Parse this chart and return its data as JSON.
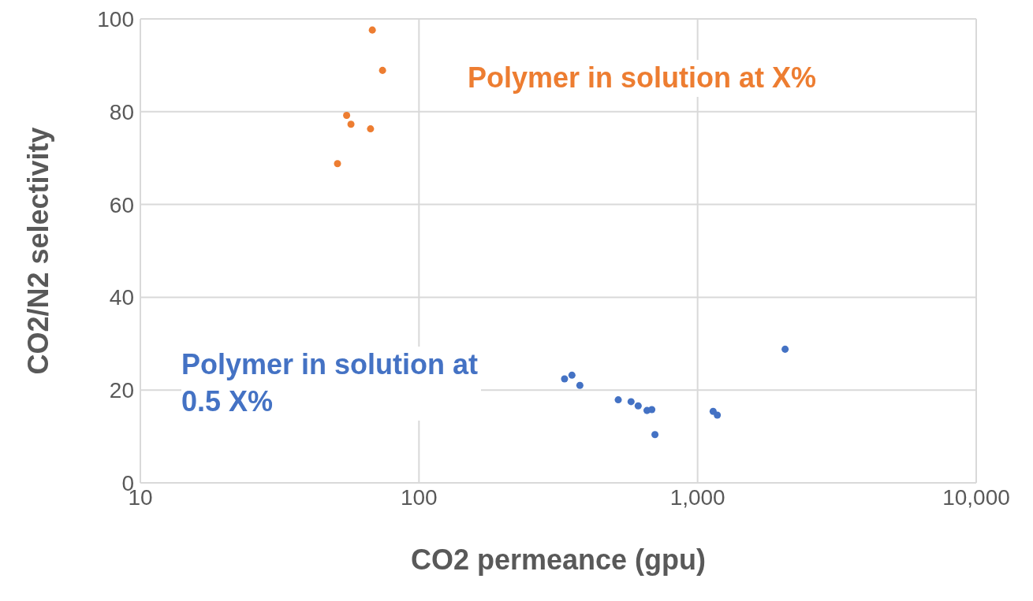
{
  "chart_data": {
    "type": "scatter",
    "xlabel": "CO2 permeance (gpu)",
    "ylabel": "CO2/N2 selectivity",
    "log": "x",
    "xlim": [
      10,
      10000
    ],
    "xticks": [
      10,
      100,
      {
        "value": 1000,
        "label": "1,000"
      },
      {
        "value": 10000,
        "label": "10,000"
      }
    ],
    "ylim": [
      0,
      100
    ],
    "yticks": [
      0,
      20,
      40,
      60,
      80,
      100
    ],
    "grid": true,
    "legend": false,
    "marker": "circle",
    "series": [
      {
        "name": "Polymer in solution at X%",
        "color": "#ed7d31",
        "x": [
          68,
          74,
          55,
          57,
          67,
          51
        ],
        "values": [
          97.6,
          88.9,
          79.2,
          77.3,
          76.3,
          68.8
        ]
      },
      {
        "name": "Polymer in solution at 0.5 X%",
        "color": "#4472c4",
        "x": [
          333,
          354,
          378,
          519,
          577,
          612,
          658,
          685,
          703,
          1137,
          1177,
          2061
        ],
        "values": [
          22.4,
          23.2,
          21.0,
          17.9,
          17.5,
          16.6,
          15.6,
          15.8,
          10.4,
          15.4,
          14.6,
          28.8
        ]
      }
    ]
  }
}
